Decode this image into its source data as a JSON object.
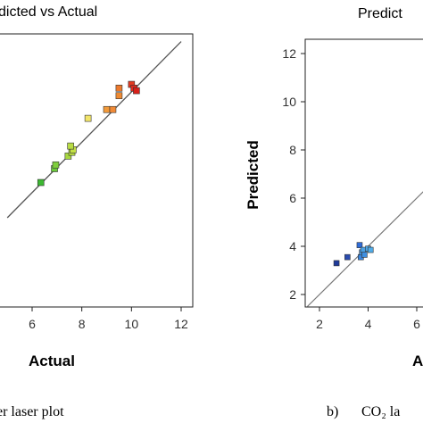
{
  "chart_data": [
    {
      "type": "scatter",
      "title": "dicted vs Actual",
      "xlabel": "Actual",
      "ylabel": "",
      "xlim": [
        5,
        12
      ],
      "ylim": [
        4.5,
        12.5
      ],
      "xticks": [
        "6",
        "8",
        "10",
        "12"
      ],
      "yticks": [],
      "grid": false,
      "reference_line": "y = x",
      "caption": "er laser plot",
      "points": [
        {
          "x": 6.35,
          "y": 6.4,
          "color": "#3cb832"
        },
        {
          "x": 6.9,
          "y": 6.95,
          "color": "#6bc83a"
        },
        {
          "x": 6.95,
          "y": 7.1,
          "color": "#7fce3c"
        },
        {
          "x": 7.45,
          "y": 7.45,
          "color": "#a8d840"
        },
        {
          "x": 7.6,
          "y": 7.6,
          "color": "#b7dc42"
        },
        {
          "x": 7.65,
          "y": 7.7,
          "color": "#c3e046"
        },
        {
          "x": 7.55,
          "y": 7.85,
          "color": "#b8dc44"
        },
        {
          "x": 8.25,
          "y": 8.95,
          "color": "#f2e56a"
        },
        {
          "x": 9.0,
          "y": 9.3,
          "color": "#f29a3a"
        },
        {
          "x": 9.25,
          "y": 9.3,
          "color": "#f08a36"
        },
        {
          "x": 9.5,
          "y": 9.85,
          "color": "#ee8a32"
        },
        {
          "x": 9.5,
          "y": 10.15,
          "color": "#ec7a2e"
        },
        {
          "x": 10.0,
          "y": 10.3,
          "color": "#e23a22"
        },
        {
          "x": 10.1,
          "y": 10.15,
          "color": "#dd2a1e"
        },
        {
          "x": 10.2,
          "y": 10.05,
          "color": "#d8201a"
        }
      ]
    },
    {
      "type": "scatter",
      "title": "Predict",
      "xlabel": "A",
      "ylabel": "Predicted",
      "xlim": [
        1.5,
        7
      ],
      "ylim": [
        1.5,
        12.6
      ],
      "xticks": [
        "2",
        "4",
        "6"
      ],
      "yticks": [
        "2",
        "4",
        "6",
        "8",
        "10",
        "12"
      ],
      "grid": false,
      "reference_line": "y = x",
      "caption_label": "b)",
      "caption": "CO₂ la",
      "points": [
        {
          "x": 2.7,
          "y": 3.3,
          "color": "#1f3a9a"
        },
        {
          "x": 3.15,
          "y": 3.55,
          "color": "#2a4cb0"
        },
        {
          "x": 3.65,
          "y": 4.05,
          "color": "#2f6cd8"
        },
        {
          "x": 3.7,
          "y": 3.55,
          "color": "#3a86e0"
        },
        {
          "x": 3.75,
          "y": 3.75,
          "color": "#3f94e2"
        },
        {
          "x": 3.8,
          "y": 3.85,
          "color": "#4aa0e4"
        },
        {
          "x": 3.85,
          "y": 3.65,
          "color": "#3f8fe0"
        },
        {
          "x": 4.0,
          "y": 3.9,
          "color": "#4ca6e6"
        },
        {
          "x": 4.1,
          "y": 3.85,
          "color": "#50ace8"
        }
      ]
    }
  ]
}
